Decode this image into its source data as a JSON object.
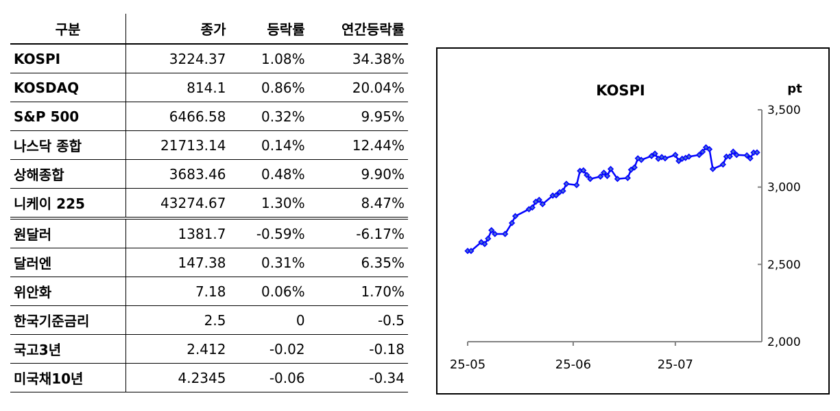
{
  "table": {
    "headers": [
      "구분",
      "종가",
      "등락률",
      "연간등락률"
    ],
    "rows": [
      [
        "KOSPI",
        "3224.37",
        "1.08%",
        "34.38%"
      ],
      [
        "KOSDAQ",
        "814.1",
        "0.86%",
        "20.04%"
      ],
      [
        "S&P 500",
        "6466.58",
        "0.32%",
        "9.95%"
      ],
      [
        "나스닥 종합",
        "21713.14",
        "0.14%",
        "12.44%"
      ],
      [
        "상해종합",
        "3683.46",
        "0.48%",
        "9.90%"
      ],
      [
        "니케이 225",
        "43274.67",
        "1.30%",
        "8.47%"
      ],
      [
        "원달러",
        "1381.7",
        "-0.59%",
        "-6.17%"
      ],
      [
        "달러엔",
        "147.38",
        "0.31%",
        "6.35%"
      ],
      [
        "위안화",
        "7.18",
        "0.06%",
        "1.70%"
      ],
      [
        "한국기준금리",
        "2.5",
        "0",
        "-0.5"
      ],
      [
        "국고3년",
        "2.412",
        "-0.02",
        "-0.18"
      ],
      [
        "미국채10년",
        "4.2345",
        "-0.06",
        "-0.34"
      ]
    ]
  },
  "chart_data": {
    "type": "line",
    "title": "KOSPI",
    "ylabel": "pt",
    "xlabel": "",
    "x_unit": "days since 2025-05-01",
    "xlim": [
      0,
      86
    ],
    "ylim": [
      2000,
      3500
    ],
    "yticks": [
      2000,
      2500,
      3000,
      3500
    ],
    "ytick_labels": [
      "2,000",
      "2,500",
      "3,000",
      "3,500"
    ],
    "xticks": [
      0,
      31,
      61
    ],
    "xtick_labels": [
      "25-05",
      "25-06",
      "25-07"
    ],
    "grid": false,
    "y_axis_side": "right",
    "series": [
      {
        "name": "KOSPI",
        "color": "#0000ff",
        "marker": "diamond",
        "x": [
          0,
          1,
          4,
          5,
          6,
          7,
          8,
          11,
          13,
          14,
          18,
          19,
          20,
          21,
          22,
          25,
          26,
          27,
          28,
          29,
          32,
          33,
          34,
          35,
          36,
          39,
          40,
          41,
          42,
          44,
          47,
          48,
          49,
          50,
          51,
          54,
          55,
          56,
          57,
          58,
          61,
          62,
          63,
          64,
          65,
          68,
          69,
          70,
          71,
          72,
          75,
          76,
          77,
          78,
          79,
          82,
          83,
          84,
          85
        ],
        "values": [
          2587,
          2587,
          2644,
          2632,
          2667,
          2721,
          2697,
          2697,
          2768,
          2812,
          2857,
          2868,
          2905,
          2917,
          2890,
          2945,
          2947,
          2967,
          2975,
          3021,
          3013,
          3105,
          3108,
          3078,
          3053,
          3068,
          3093,
          3072,
          3117,
          3053,
          3059,
          3112,
          3127,
          3186,
          3176,
          3201,
          3216,
          3183,
          3194,
          3186,
          3208,
          3169,
          3183,
          3189,
          3197,
          3208,
          3228,
          3257,
          3245,
          3117,
          3146,
          3197,
          3198,
          3229,
          3208,
          3205,
          3186,
          3223,
          3224
        ]
      }
    ]
  }
}
